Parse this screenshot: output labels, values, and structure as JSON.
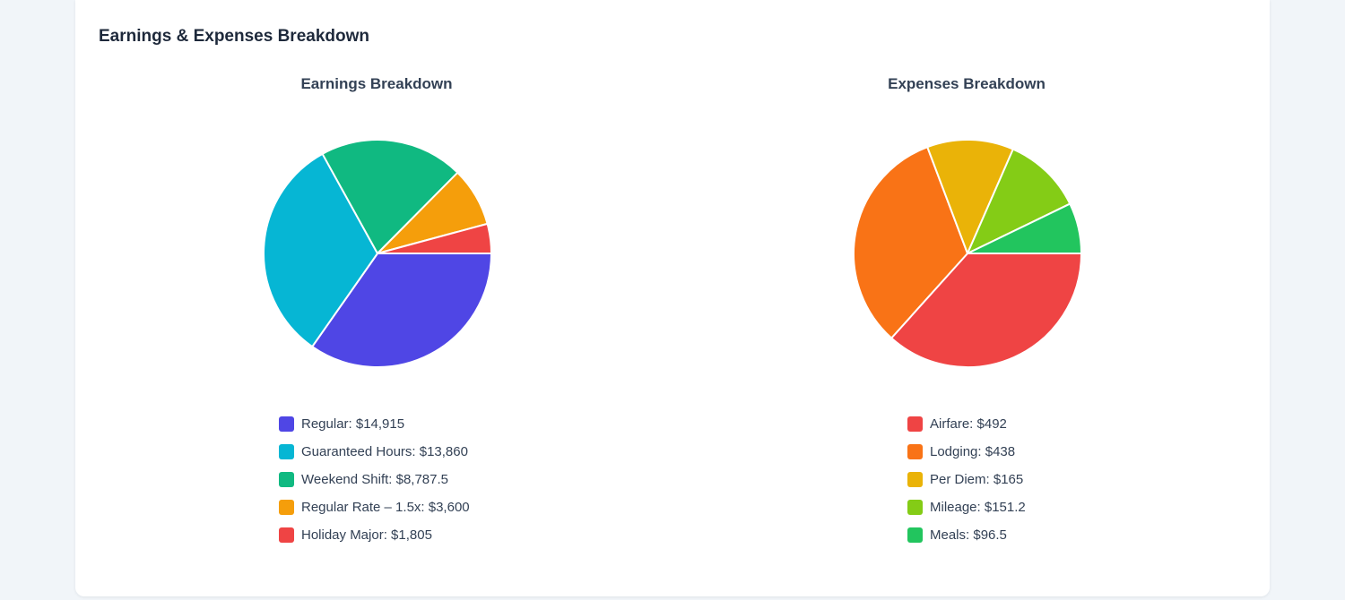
{
  "card": {
    "title": "Earnings & Expenses Breakdown"
  },
  "chart_data": [
    {
      "type": "pie",
      "title": "Earnings Breakdown",
      "categories": [
        "Regular",
        "Guaranteed Hours",
        "Weekend Shift",
        "Regular Rate – 1.5x",
        "Holiday Major"
      ],
      "values": [
        14915,
        13860,
        8787.5,
        3600,
        1805
      ],
      "legend_labels": [
        "Regular: $14,915",
        "Guaranteed Hours: $13,860",
        "Weekend Shift: $8,787.5",
        "Regular Rate – 1.5x: $3,600",
        "Holiday Major: $1,805"
      ],
      "colors": [
        "#4f46e5",
        "#06b6d4",
        "#10b981",
        "#f59e0b",
        "#ef4444"
      ],
      "legend_placement": "bottom"
    },
    {
      "type": "pie",
      "title": "Expenses Breakdown",
      "categories": [
        "Airfare",
        "Lodging",
        "Per Diem",
        "Mileage",
        "Meals"
      ],
      "values": [
        492,
        438,
        165,
        151.2,
        96.5
      ],
      "legend_labels": [
        "Airfare: $492",
        "Lodging: $438",
        "Per Diem: $165",
        "Mileage: $151.2",
        "Meals: $96.5"
      ],
      "colors": [
        "#ef4444",
        "#f97316",
        "#eab308",
        "#84cc16",
        "#22c55e"
      ],
      "legend_placement": "bottom"
    }
  ]
}
